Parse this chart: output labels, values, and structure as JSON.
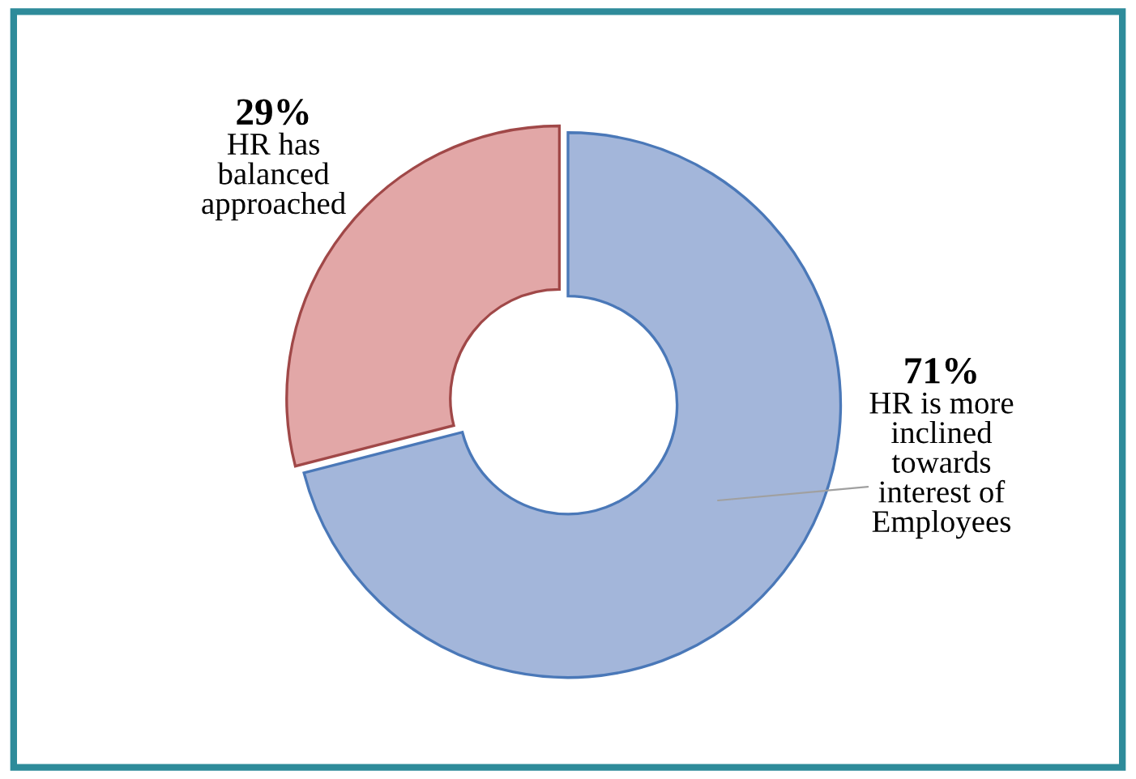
{
  "chart_data": {
    "type": "donut",
    "categories": [
      "HR is more\ninclined\ntowards\ninterest of\nEmployees",
      "HR has\nbalanced\napproached"
    ],
    "values": [
      71,
      29
    ],
    "colors": [
      "#a3b6da",
      "#e2a7a7"
    ],
    "value_labels": [
      "71%",
      "29%"
    ],
    "legend": false
  }
}
